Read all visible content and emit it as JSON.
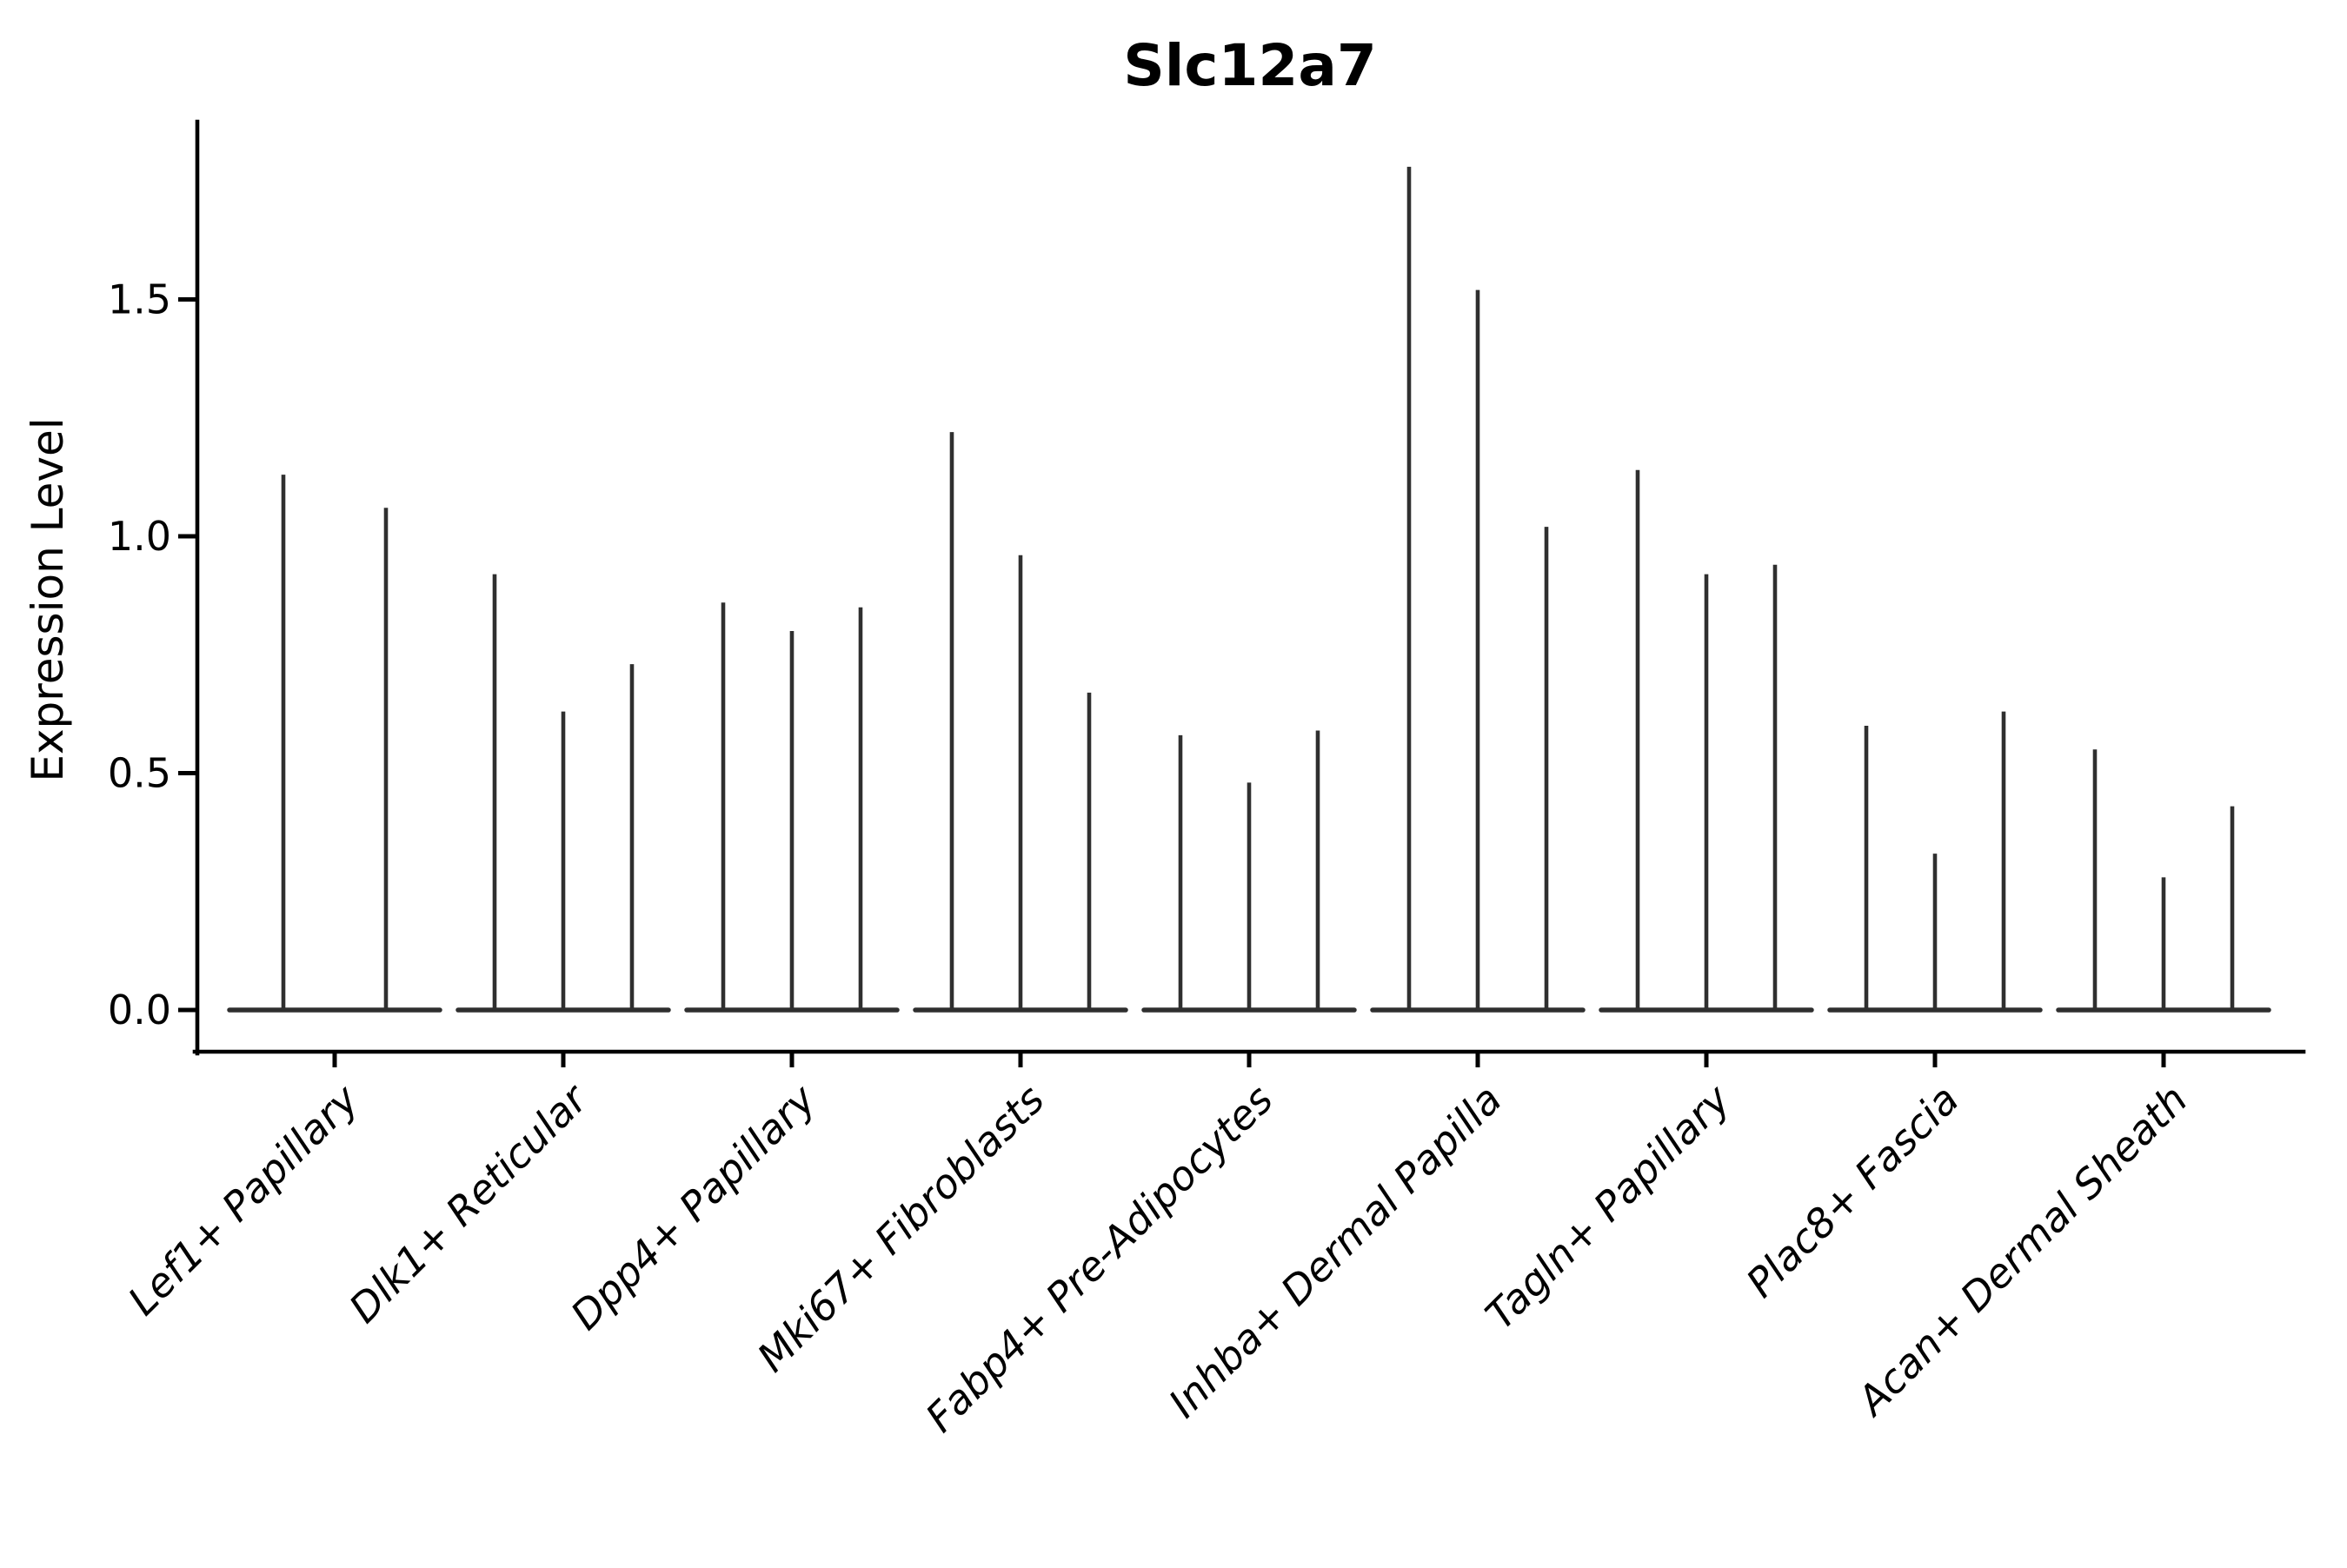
{
  "figure": {
    "background": "#ffffff"
  },
  "chart_data": {
    "type": "violin",
    "title": "Slc12a7",
    "xlabel": "",
    "ylabel": "Expression Level",
    "ylim": [
      0,
      1.87
    ],
    "yticks": [
      0.0,
      0.5,
      1.0,
      1.5
    ],
    "ytick_labels": [
      "0.0",
      "0.5",
      "1.0",
      "1.5"
    ],
    "grid": false,
    "legend_position": "none",
    "xtick_label_rotation_deg": 45,
    "xtick_label_style": "italic",
    "categories": [
      "Lef1+ Papillary",
      "Dlk1+ Reticular",
      "Dpp4+ Papillary",
      "Mki67+ Fibroblasts",
      "Fabp4+ Pre-Adipocytes",
      "Inhba+ Dermal Papilla",
      "Tagln+ Papillary",
      "Plac8+ Fascia",
      "Acan+ Dermal Sheath"
    ],
    "groups": [
      {
        "label": "Lef1+ Papillary",
        "violin_max_values": [
          1.13,
          1.06
        ]
      },
      {
        "label": "Dlk1+ Reticular",
        "violin_max_values": [
          0.92,
          0.63,
          0.73
        ]
      },
      {
        "label": "Dpp4+ Papillary",
        "violin_max_values": [
          0.86,
          0.8,
          0.85
        ]
      },
      {
        "label": "Mki67+ Fibroblasts",
        "violin_max_values": [
          1.22,
          0.96,
          0.67
        ]
      },
      {
        "label": "Fabp4+ Pre-Adipocytes",
        "violin_max_values": [
          0.58,
          0.48,
          0.59
        ]
      },
      {
        "label": "Inhba+ Dermal Papilla",
        "violin_max_values": [
          1.78,
          1.52,
          1.02
        ]
      },
      {
        "label": "Tagln+ Papillary",
        "violin_max_values": [
          1.14,
          0.92,
          0.94
        ]
      },
      {
        "label": "Plac8+ Fascia",
        "violin_max_values": [
          0.6,
          0.33,
          0.63
        ]
      },
      {
        "label": "Acan+ Dermal Sheath",
        "violin_max_values": [
          0.55,
          0.28,
          0.43
        ]
      }
    ],
    "note": "Each category shows narrow violins (near-zero density bodies) rendered as thin vertical spikes rising from a flattened baseline at expression 0; values are the top (max) expression of each spike.",
    "colors": {
      "violin": "#2f2f2f",
      "axis": "#000000",
      "text": "#000000",
      "background": "#ffffff"
    }
  }
}
